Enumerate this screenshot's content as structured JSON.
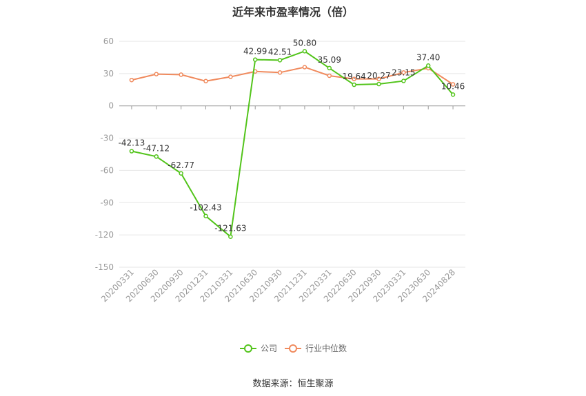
{
  "chart_data": {
    "type": "line",
    "title": "近年来市盈率情况（倍）",
    "categories": [
      "20200331",
      "20200630",
      "20200930",
      "20201231",
      "20210331",
      "20210630",
      "20210930",
      "20211231",
      "20220331",
      "20220630",
      "20220930",
      "20230331",
      "20230630",
      "20240828"
    ],
    "series": [
      {
        "name": "公司",
        "color": "#52c41a",
        "values": [
          -42.13,
          -47.12,
          -62.77,
          -102.43,
          -121.63,
          42.99,
          42.51,
          50.8,
          35.09,
          19.64,
          20.27,
          23.15,
          37.4,
          10.46
        ],
        "labels": [
          "-42.13",
          "-47.12",
          "-62.77",
          "-102.43",
          "-121.63",
          "42.99",
          "42.51",
          "50.80",
          "35.09",
          "19.64",
          "20.27",
          "23.15",
          "37.40",
          "10.46"
        ]
      },
      {
        "name": "行业中位数",
        "color": "#f08a5d",
        "values": [
          24,
          29.5,
          29,
          23,
          27,
          32,
          31,
          36,
          28,
          25,
          25,
          31,
          35,
          20
        ]
      }
    ],
    "ylim": [
      -150,
      60
    ],
    "yticks": [
      60,
      30,
      0,
      -30,
      -60,
      -90,
      -120,
      -150
    ],
    "grid": true,
    "legend_position": "bottom-center"
  },
  "source": "数据来源：恒生聚源"
}
